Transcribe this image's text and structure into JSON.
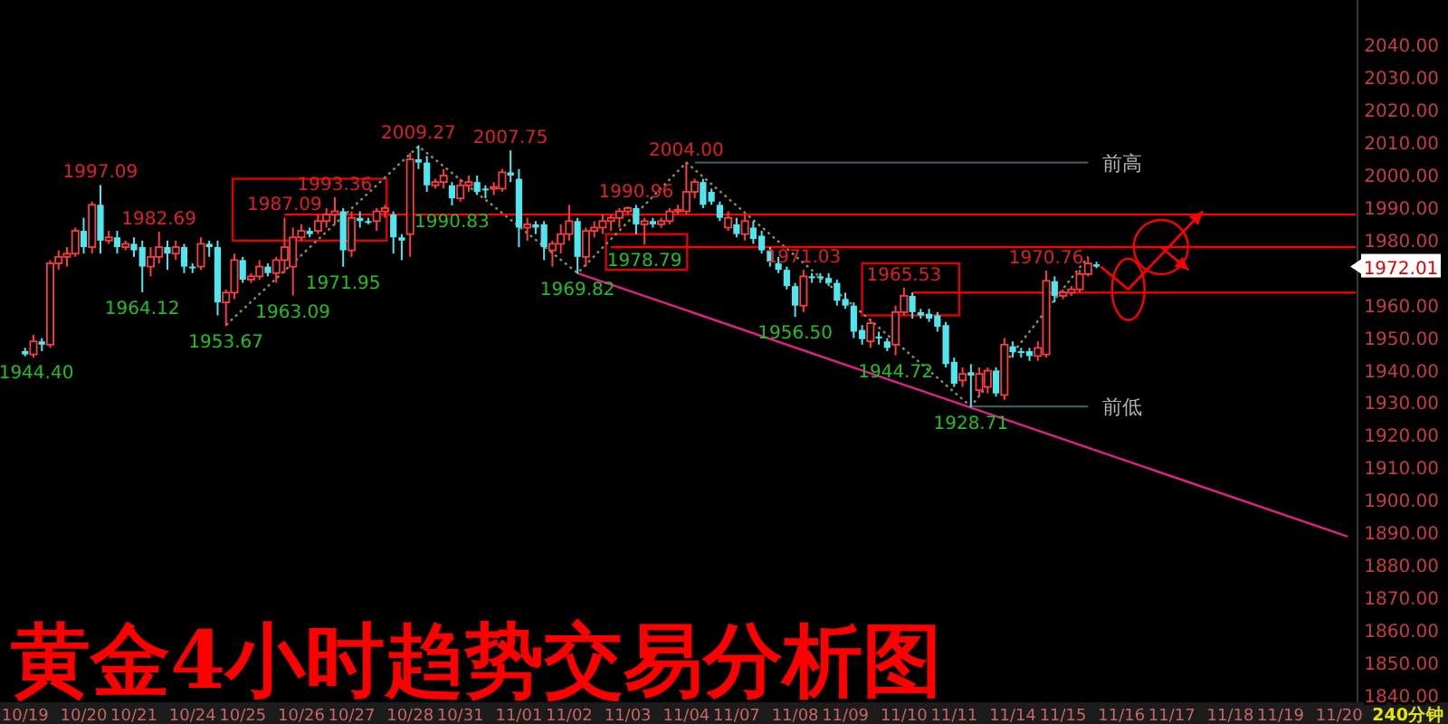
{
  "chart_data": {
    "type": "candlestick",
    "title": "黄金4小时趋势交易分析图",
    "ylim": [
      1838,
      2054
    ],
    "categories": [
      "10/19",
      null,
      null,
      null,
      null,
      null,
      null,
      "10/20",
      null,
      null,
      null,
      null,
      null,
      "10/21",
      null,
      null,
      null,
      null,
      null,
      null,
      "10/24",
      null,
      null,
      null,
      null,
      null,
      "10/25",
      null,
      null,
      null,
      null,
      null,
      null,
      "10/26",
      null,
      null,
      null,
      null,
      null,
      "10/27",
      null,
      null,
      null,
      null,
      null,
      null,
      "10/28",
      null,
      null,
      null,
      null,
      null,
      "10/31",
      null,
      null,
      null,
      null,
      null,
      null,
      "11/01",
      null,
      null,
      null,
      null,
      null,
      "11/02",
      null,
      null,
      null,
      null,
      null,
      null,
      "11/03",
      null,
      null,
      null,
      null,
      null,
      null,
      "11/04",
      null,
      null,
      null,
      null,
      null,
      "11/07",
      null,
      null,
      null,
      null,
      null,
      null,
      "11/08",
      null,
      null,
      null,
      null,
      null,
      "11/09",
      null,
      null,
      null,
      null,
      null,
      null,
      "11/10",
      null,
      null,
      null,
      null,
      null,
      "11/11",
      null,
      null,
      null,
      null,
      null,
      null,
      "11/14",
      null,
      null,
      null,
      null,
      null,
      "11/15",
      null,
      null,
      null,
      null,
      null,
      null,
      "11/16",
      null,
      null,
      null,
      null,
      null,
      "11/17",
      null,
      null,
      null,
      null,
      null,
      null,
      "11/18",
      null,
      null,
      null,
      null,
      null,
      "11/19",
      null,
      null,
      null,
      null,
      null,
      null,
      "11/20",
      null,
      null
    ],
    "yticks": [
      {
        "value": 1840,
        "label": "1840.00"
      },
      {
        "value": 1850,
        "label": "1850.00"
      },
      {
        "value": 1860,
        "label": "1860.00"
      },
      {
        "value": 1870,
        "label": "1870.00"
      },
      {
        "value": 1880,
        "label": "1880.00"
      },
      {
        "value": 1890,
        "label": "1890.00"
      },
      {
        "value": 1900,
        "label": "1900.00"
      },
      {
        "value": 1910,
        "label": "1910.00"
      },
      {
        "value": 1920,
        "label": "1920.00"
      },
      {
        "value": 1930,
        "label": "1930.00"
      },
      {
        "value": 1940,
        "label": "1940.00"
      },
      {
        "value": 1950,
        "label": "1950.00"
      },
      {
        "value": 1960,
        "label": "1960.00"
      },
      {
        "value": 1980,
        "label": "1980.00"
      },
      {
        "value": 1990,
        "label": "1990.00"
      },
      {
        "value": 2000,
        "label": "2000.00"
      },
      {
        "value": 2010,
        "label": "2010.00"
      },
      {
        "value": 2020,
        "label": "2020.00"
      },
      {
        "value": 2030,
        "label": "2030.00"
      },
      {
        "value": 2040,
        "label": "2040.00"
      }
    ],
    "ohlc": [
      [
        1946,
        1947,
        1944.4,
        1945
      ],
      [
        1945,
        1951,
        1944,
        1949
      ],
      [
        1949,
        1950,
        1946,
        1948
      ],
      [
        1948,
        1974,
        1947,
        1973
      ],
      [
        1973,
        1977,
        1971,
        1975
      ],
      [
        1975,
        1978,
        1972,
        1976
      ],
      [
        1976,
        1984,
        1975,
        1983
      ],
      [
        1983,
        1987,
        1976,
        1978
      ],
      [
        1978,
        1992,
        1976,
        1991
      ],
      [
        1991,
        1997.09,
        1976,
        1980
      ],
      [
        1980,
        1983,
        1979,
        1981
      ],
      [
        1981,
        1983,
        1976,
        1978
      ],
      [
        1978,
        1980,
        1977,
        1979
      ],
      [
        1979,
        1981,
        1975,
        1977
      ],
      [
        1978,
        1980,
        1964.12,
        1972
      ],
      [
        1972,
        1978,
        1969,
        1975
      ],
      [
        1975,
        1982.69,
        1973,
        1978
      ],
      [
        1978,
        1980,
        1971,
        1976
      ],
      [
        1976,
        1980,
        1974,
        1978
      ],
      [
        1978,
        1979,
        1970,
        1972
      ],
      [
        1972,
        1973,
        1970,
        1972
      ],
      [
        1972,
        1981,
        1971,
        1979
      ],
      [
        1979,
        1980,
        1975,
        1978
      ],
      [
        1978,
        1980,
        1957,
        1961
      ],
      [
        1961,
        1965,
        1953.67,
        1964
      ],
      [
        1964,
        1976,
        1962,
        1974
      ],
      [
        1974,
        1975,
        1967,
        1968
      ],
      [
        1968,
        1970,
        1967,
        1969
      ],
      [
        1969,
        1974,
        1968,
        1972
      ],
      [
        1972,
        1973,
        1969,
        1970
      ],
      [
        1970,
        1975,
        1967,
        1974
      ],
      [
        1974,
        1987.09,
        1970,
        1978
      ],
      [
        1972,
        1984,
        1963.09,
        1981
      ],
      [
        1981,
        1985,
        1980,
        1983
      ],
      [
        1983,
        1984,
        1981,
        1982
      ],
      [
        1983,
        1988,
        1982,
        1986
      ],
      [
        1986,
        1990,
        1984,
        1988
      ],
      [
        1988,
        1993.36,
        1985,
        1989
      ],
      [
        1989,
        1990,
        1971.95,
        1977
      ],
      [
        1977,
        1989,
        1975,
        1987
      ],
      [
        1987,
        1989,
        1984,
        1986
      ],
      [
        1986,
        1987,
        1985,
        1985.5
      ],
      [
        1986,
        1990,
        1983,
        1989
      ],
      [
        1989,
        1991,
        1987,
        1990
      ],
      [
        1988,
        1989,
        1976,
        1981
      ],
      [
        1981,
        1982,
        1974,
        1980
      ],
      [
        1982,
        2007,
        1975,
        2005
      ],
      [
        2005,
        2009.27,
        2002,
        2004
      ],
      [
        2004,
        2006,
        1995,
        1997
      ],
      [
        1997,
        1999,
        1996,
        1998
      ],
      [
        1998,
        2002,
        1996,
        2000
      ],
      [
        1997,
        1998,
        1990.83,
        1993
      ],
      [
        1993,
        1999,
        1992,
        1997
      ],
      [
        1997,
        2000,
        1995,
        1998
      ],
      [
        1998,
        2000,
        1994,
        1995
      ],
      [
        1996,
        1997,
        1993,
        1995.5
      ],
      [
        1996,
        1998,
        1994,
        1996.5
      ],
      [
        1996,
        2002,
        1995,
        2001
      ],
      [
        2001,
        2007.75,
        1998,
        2000
      ],
      [
        1999,
        2002,
        1978,
        1984
      ],
      [
        1984,
        1987,
        1980,
        1985
      ],
      [
        1985,
        1986,
        1982,
        1984
      ],
      [
        1985,
        1986,
        1974,
        1978
      ],
      [
        1977,
        1980,
        1972,
        1979
      ],
      [
        1979,
        1985,
        1976,
        1982
      ],
      [
        1982,
        1991,
        1980,
        1986
      ],
      [
        1986,
        1987,
        1969.82,
        1975
      ],
      [
        1975,
        1984,
        1972,
        1983
      ],
      [
        1983,
        1986,
        1981,
        1984
      ],
      [
        1984,
        1988,
        1982,
        1986
      ],
      [
        1986,
        1988,
        1983,
        1987
      ],
      [
        1987,
        1990,
        1984,
        1989
      ],
      [
        1989,
        1990.5,
        1988,
        1990
      ],
      [
        1990,
        1990.96,
        1982,
        1985
      ],
      [
        1985,
        1987,
        1978.79,
        1986
      ],
      [
        1986,
        1987,
        1984,
        1985
      ],
      [
        1985,
        1987,
        1984,
        1986
      ],
      [
        1986,
        1990,
        1985,
        1989
      ],
      [
        1989,
        1991,
        1988,
        1989.5
      ],
      [
        1989,
        2004.0,
        1988,
        1995
      ],
      [
        1995,
        1999,
        1993,
        1998
      ],
      [
        1998,
        1999,
        1990,
        1991
      ],
      [
        1995,
        1996,
        1991,
        1992
      ],
      [
        1991,
        1992,
        1986,
        1987
      ],
      [
        1984,
        1989,
        1983,
        1987
      ],
      [
        1985,
        1987,
        1981,
        1982
      ],
      [
        1982,
        1988,
        1980,
        1986
      ],
      [
        1984,
        1986,
        1979,
        1980.5
      ],
      [
        1981.5,
        1983,
        1976,
        1977
      ],
      [
        1977,
        1978,
        1972,
        1973.5
      ],
      [
        1973,
        1975,
        1970,
        1971
      ],
      [
        1971,
        1972,
        1965,
        1966
      ],
      [
        1966,
        1967,
        1956.5,
        1960
      ],
      [
        1960,
        1971.03,
        1958,
        1969
      ],
      [
        1969,
        1970,
        1967,
        1968.5
      ],
      [
        1969,
        1970,
        1967,
        1968.5
      ],
      [
        1968.5,
        1970,
        1966,
        1967
      ],
      [
        1967,
        1968,
        1960,
        1961.5
      ],
      [
        1962,
        1964,
        1959,
        1960
      ],
      [
        1960,
        1961,
        1950,
        1952
      ],
      [
        1952.5,
        1954,
        1948,
        1949.7
      ],
      [
        1949,
        1956,
        1947,
        1954.6
      ],
      [
        1950.5,
        1952,
        1948,
        1950
      ],
      [
        1949,
        1950,
        1946,
        1947
      ],
      [
        1948,
        1960,
        1944.72,
        1958
      ],
      [
        1958,
        1965.53,
        1957,
        1963
      ],
      [
        1963,
        1964,
        1956,
        1958
      ],
      [
        1958,
        1959,
        1956,
        1957
      ],
      [
        1957.5,
        1959,
        1955,
        1956
      ],
      [
        1957,
        1958,
        1952,
        1953.5
      ],
      [
        1954,
        1955,
        1941,
        1942
      ],
      [
        1942.7,
        1944,
        1935,
        1936
      ],
      [
        1937,
        1941,
        1935,
        1939
      ],
      [
        1939.5,
        1942,
        1928.71,
        1938.5
      ],
      [
        1934,
        1941,
        1932,
        1939
      ],
      [
        1935,
        1941,
        1933,
        1940
      ],
      [
        1940,
        1941,
        1932,
        1933
      ],
      [
        1932.5,
        1950,
        1931,
        1948
      ],
      [
        1947.5,
        1949,
        1944,
        1945.7
      ],
      [
        1946,
        1947,
        1944,
        1946
      ],
      [
        1946,
        1947,
        1943,
        1944.5
      ],
      [
        1944.5,
        1949,
        1943,
        1947
      ],
      [
        1945,
        1970.76,
        1944,
        1967.6
      ],
      [
        1967.5,
        1969,
        1961,
        1963
      ],
      [
        1963,
        1965,
        1962,
        1964
      ],
      [
        1964,
        1966,
        1963,
        1965
      ],
      [
        1965,
        1971,
        1964,
        1969.7
      ],
      [
        1969.7,
        1975,
        1969,
        1973
      ],
      [
        1972.7,
        1973.5,
        1971.5,
        1972.01
      ],
      null,
      null,
      null,
      null,
      null,
      null,
      null,
      null,
      null,
      null,
      null,
      null,
      null,
      null,
      null,
      null,
      null,
      null,
      null,
      null,
      null,
      null,
      null,
      null,
      null,
      null,
      null,
      null,
      null,
      null,
      null
    ],
    "series": [
      {
        "type": "line",
        "color": "#8c8c5a",
        "line_style": "dotted",
        "values": [
          null,
          null,
          null,
          null,
          null,
          null,
          null,
          null,
          null,
          null,
          null,
          null,
          null,
          null,
          null,
          null,
          null,
          null,
          null,
          null,
          null,
          null,
          null,
          null,
          1954,
          null,
          null,
          null,
          null,
          null,
          null,
          null,
          null,
          null,
          null,
          null,
          null,
          null,
          null,
          null,
          null,
          null,
          null,
          null,
          null,
          null,
          null,
          2009,
          null,
          null,
          null,
          null,
          null,
          null,
          null,
          null,
          null,
          null,
          null,
          null,
          null,
          null,
          null,
          null,
          null,
          null,
          1970,
          null,
          null,
          null,
          null,
          null,
          null,
          null,
          null,
          null,
          null,
          null,
          null,
          2004,
          null,
          null,
          null,
          null,
          null,
          null,
          null,
          null,
          null,
          null,
          null,
          null,
          null,
          null,
          null,
          null,
          null,
          null,
          null,
          null,
          null,
          null,
          null,
          null,
          null,
          null,
          null,
          null,
          null,
          null,
          null,
          null,
          null,
          1929,
          null,
          null,
          null,
          null,
          null,
          null,
          null,
          null,
          null,
          null,
          null,
          null,
          null,
          1975,
          null,
          null,
          null,
          null,
          null,
          null,
          null,
          null,
          null,
          null,
          null,
          null,
          null,
          null,
          null,
          null,
          null,
          null,
          null,
          null,
          null,
          null,
          null,
          null,
          null,
          null,
          null,
          null,
          null,
          null,
          null,
          null
        ]
      },
      {
        "type": "line",
        "color": "#e0218a",
        "values": [
          null,
          null,
          null,
          null,
          null,
          null,
          null,
          null,
          null,
          null,
          null,
          null,
          null,
          null,
          null,
          null,
          null,
          null,
          null,
          null,
          null,
          null,
          null,
          null,
          null,
          null,
          null,
          null,
          null,
          null,
          null,
          null,
          null,
          null,
          null,
          null,
          null,
          null,
          null,
          null,
          null,
          null,
          null,
          null,
          null,
          null,
          null,
          null,
          null,
          null,
          null,
          null,
          null,
          null,
          null,
          null,
          null,
          null,
          null,
          null,
          null,
          null,
          null,
          null,
          null,
          null,
          1970,
          null,
          null,
          null,
          null,
          null,
          null,
          null,
          null,
          null,
          null,
          null,
          null,
          null,
          null,
          null,
          null,
          null,
          null,
          null,
          null,
          null,
          null,
          null,
          null,
          null,
          null,
          null,
          null,
          null,
          null,
          null,
          null,
          null,
          null,
          null,
          null,
          null,
          null,
          null,
          null,
          null,
          null,
          null,
          null,
          null,
          null,
          null,
          null,
          null,
          null,
          null,
          null,
          null,
          null,
          null,
          null,
          null,
          null,
          null,
          null,
          null,
          null,
          null,
          null,
          null,
          null,
          null,
          null,
          null,
          null,
          null,
          null,
          null,
          null,
          null,
          null,
          null,
          null,
          null,
          null,
          null,
          null,
          null,
          null,
          null,
          null,
          null,
          null,
          null,
          null,
          null,
          1889,
          null
        ]
      },
      {
        "type": "line",
        "name": "前高",
        "color": "#3c5a5a",
        "values": [
          null,
          null,
          null,
          null,
          null,
          null,
          null,
          null,
          null,
          null,
          null,
          null,
          null,
          null,
          null,
          null,
          null,
          null,
          null,
          null,
          null,
          null,
          null,
          null,
          null,
          null,
          null,
          null,
          null,
          null,
          null,
          null,
          null,
          null,
          null,
          null,
          null,
          null,
          null,
          null,
          null,
          null,
          null,
          null,
          null,
          null,
          null,
          null,
          null,
          null,
          null,
          null,
          null,
          null,
          null,
          null,
          null,
          null,
          null,
          null,
          null,
          null,
          null,
          null,
          null,
          null,
          null,
          null,
          null,
          null,
          null,
          null,
          null,
          null,
          null,
          null,
          null,
          null,
          null,
          null,
          2004,
          null,
          null,
          null,
          null,
          null,
          null,
          null,
          null,
          null,
          null,
          null,
          null,
          null,
          null,
          null,
          null,
          null,
          null,
          null,
          null,
          null,
          null,
          null,
          null,
          null,
          null,
          null,
          null,
          null,
          null,
          null,
          null,
          null,
          null,
          null,
          null,
          null,
          null,
          null,
          null,
          null,
          null,
          null,
          null,
          null,
          null,
          2004,
          null,
          null,
          null,
          null,
          null,
          null,
          null,
          null,
          null,
          null,
          null,
          null,
          null,
          null,
          null,
          null,
          null,
          null,
          null,
          null,
          null,
          null,
          null,
          null,
          null,
          null,
          null,
          null,
          null,
          null,
          null,
          null
        ]
      },
      {
        "type": "line",
        "name": "前低",
        "color": "#3c5a5a",
        "values": [
          null,
          null,
          null,
          null,
          null,
          null,
          null,
          null,
          null,
          null,
          null,
          null,
          null,
          null,
          null,
          null,
          null,
          null,
          null,
          null,
          null,
          null,
          null,
          null,
          null,
          null,
          null,
          null,
          null,
          null,
          null,
          null,
          null,
          null,
          null,
          null,
          null,
          null,
          null,
          null,
          null,
          null,
          null,
          null,
          null,
          null,
          null,
          null,
          null,
          null,
          null,
          null,
          null,
          null,
          null,
          null,
          null,
          null,
          null,
          null,
          null,
          null,
          null,
          null,
          null,
          null,
          null,
          null,
          null,
          null,
          null,
          null,
          null,
          null,
          null,
          null,
          null,
          null,
          null,
          null,
          null,
          null,
          null,
          null,
          null,
          null,
          null,
          null,
          null,
          null,
          null,
          null,
          null,
          null,
          null,
          null,
          null,
          null,
          null,
          null,
          null,
          null,
          null,
          null,
          null,
          null,
          null,
          null,
          null,
          null,
          null,
          null,
          null,
          1929,
          null,
          null,
          null,
          null,
          null,
          null,
          null,
          null,
          null,
          null,
          null,
          null,
          null,
          1929,
          null,
          null,
          null,
          null,
          null,
          null,
          null,
          null,
          null,
          null,
          null,
          null,
          null,
          null,
          null,
          null,
          null,
          null,
          null,
          null,
          null,
          null,
          null,
          null,
          null,
          null,
          null,
          null,
          null,
          null,
          null,
          null
        ]
      },
      {
        "type": "line",
        "color": "#ff0000",
        "values": [
          null,
          null,
          null,
          null,
          null,
          null,
          null,
          null,
          null,
          null,
          null,
          null,
          null,
          null,
          null,
          null,
          null,
          null,
          null,
          null,
          null,
          null,
          null,
          null,
          null,
          null,
          null,
          null,
          null,
          null,
          null,
          1988,
          null,
          null,
          null,
          null,
          null,
          null,
          null,
          null,
          null,
          null,
          null,
          null,
          null,
          null,
          null,
          null,
          null,
          null,
          null,
          null,
          null,
          null,
          null,
          null,
          null,
          null,
          null,
          null,
          null,
          null,
          null,
          null,
          null,
          null,
          null,
          null,
          null,
          null,
          null,
          null,
          null,
          null,
          null,
          null,
          null,
          null,
          null,
          null,
          null,
          null,
          null,
          null,
          null,
          null,
          null,
          null,
          null,
          null,
          null,
          null,
          null,
          null,
          null,
          null,
          null,
          null,
          null,
          null,
          null,
          null,
          null,
          null,
          null,
          null,
          null,
          null,
          null,
          null,
          null,
          null,
          null,
          null,
          null,
          null,
          null,
          null,
          null,
          null,
          null,
          null,
          null,
          null,
          null,
          null,
          null,
          null,
          null,
          null,
          null,
          null,
          null,
          null,
          null,
          null,
          null,
          null,
          null,
          null,
          null,
          null,
          null,
          null,
          null,
          null,
          null,
          null,
          null,
          null,
          null,
          null,
          null,
          null,
          null,
          null,
          null,
          null,
          null,
          1988
        ]
      },
      {
        "type": "line",
        "color": "#ff0000",
        "values": [
          null,
          null,
          null,
          null,
          null,
          null,
          null,
          null,
          null,
          null,
          null,
          null,
          null,
          null,
          null,
          null,
          null,
          null,
          null,
          null,
          null,
          null,
          null,
          null,
          null,
          null,
          null,
          null,
          null,
          null,
          null,
          null,
          null,
          null,
          null,
          null,
          null,
          null,
          null,
          null,
          null,
          null,
          null,
          null,
          null,
          null,
          null,
          null,
          null,
          null,
          null,
          null,
          null,
          null,
          null,
          null,
          null,
          null,
          null,
          null,
          null,
          null,
          null,
          null,
          null,
          null,
          null,
          null,
          null,
          null,
          1978,
          null,
          null,
          null,
          null,
          null,
          null,
          null,
          null,
          null,
          null,
          null,
          null,
          null,
          null,
          null,
          null,
          null,
          null,
          null,
          null,
          null,
          null,
          null,
          null,
          null,
          null,
          null,
          null,
          null,
          null,
          null,
          null,
          null,
          null,
          null,
          null,
          null,
          null,
          null,
          null,
          null,
          null,
          null,
          null,
          null,
          null,
          null,
          null,
          null,
          null,
          null,
          null,
          null,
          null,
          null,
          null,
          null,
          null,
          null,
          null,
          null,
          null,
          null,
          null,
          null,
          null,
          null,
          null,
          null,
          null,
          null,
          null,
          null,
          null,
          null,
          null,
          null,
          null,
          null,
          null,
          null,
          null,
          null,
          null,
          null,
          null,
          null,
          null,
          1978
        ]
      },
      {
        "type": "line",
        "color": "#ff0000",
        "values": [
          null,
          null,
          null,
          null,
          null,
          null,
          null,
          null,
          null,
          null,
          null,
          null,
          null,
          null,
          null,
          null,
          null,
          null,
          null,
          null,
          null,
          null,
          null,
          null,
          null,
          null,
          null,
          null,
          null,
          null,
          null,
          null,
          null,
          null,
          null,
          null,
          null,
          null,
          null,
          null,
          null,
          null,
          null,
          null,
          null,
          null,
          null,
          null,
          null,
          null,
          null,
          null,
          null,
          null,
          null,
          null,
          null,
          null,
          null,
          null,
          null,
          null,
          null,
          null,
          null,
          null,
          null,
          null,
          null,
          null,
          null,
          null,
          null,
          null,
          null,
          null,
          null,
          null,
          null,
          null,
          null,
          null,
          null,
          null,
          null,
          null,
          null,
          null,
          null,
          null,
          null,
          null,
          null,
          null,
          null,
          null,
          null,
          null,
          null,
          null,
          null,
          null,
          null,
          null,
          null,
          null,
          1964,
          null,
          null,
          null,
          null,
          null,
          null,
          null,
          null,
          null,
          null,
          null,
          null,
          null,
          null,
          null,
          null,
          null,
          null,
          null,
          null,
          null,
          null,
          null,
          null,
          null,
          null,
          null,
          null,
          null,
          null,
          null,
          null,
          null,
          null,
          null,
          null,
          null,
          null,
          null,
          null,
          null,
          null,
          null,
          null,
          null,
          null,
          null,
          null,
          null,
          null,
          null,
          null,
          1964
        ]
      }
    ],
    "annotations": [
      {
        "text": "1944.40",
        "y": 1944.4
      },
      {
        "text": "1997.09",
        "y": 1997.09
      },
      {
        "text": "1964.12",
        "y": 1964.12
      },
      {
        "text": "1982.69",
        "y": 1982.69
      },
      {
        "text": "1953.67",
        "y": 1953.67
      },
      {
        "text": "1987.09",
        "y": 1987.09
      },
      {
        "text": "1963.09",
        "y": 1963.09
      },
      {
        "text": "1993.36",
        "y": 1993.36
      },
      {
        "text": "1971.95",
        "y": 1971.95
      },
      {
        "text": "2009.27",
        "y": 2009.27
      },
      {
        "text": "1990.83",
        "y": 1990.83
      },
      {
        "text": "2007.75",
        "y": 2007.75
      },
      {
        "text": "1969.82",
        "y": 1969.82
      },
      {
        "text": "1990.96",
        "y": 1990.96
      },
      {
        "text": "1978.79",
        "y": 1978.79
      },
      {
        "text": "2004.00",
        "y": 2004.0
      },
      {
        "text": "1956.50",
        "y": 1956.5
      },
      {
        "text": "1971.03",
        "y": 1971.03
      },
      {
        "text": "1944.72",
        "y": 1944.72
      },
      {
        "text": "1965.53",
        "y": 1965.53
      },
      {
        "text": "1928.71",
        "y": 1928.71
      },
      {
        "text": "1970.76",
        "y": 1970.76
      },
      "1972.01",
      "240分钟"
    ]
  }
}
